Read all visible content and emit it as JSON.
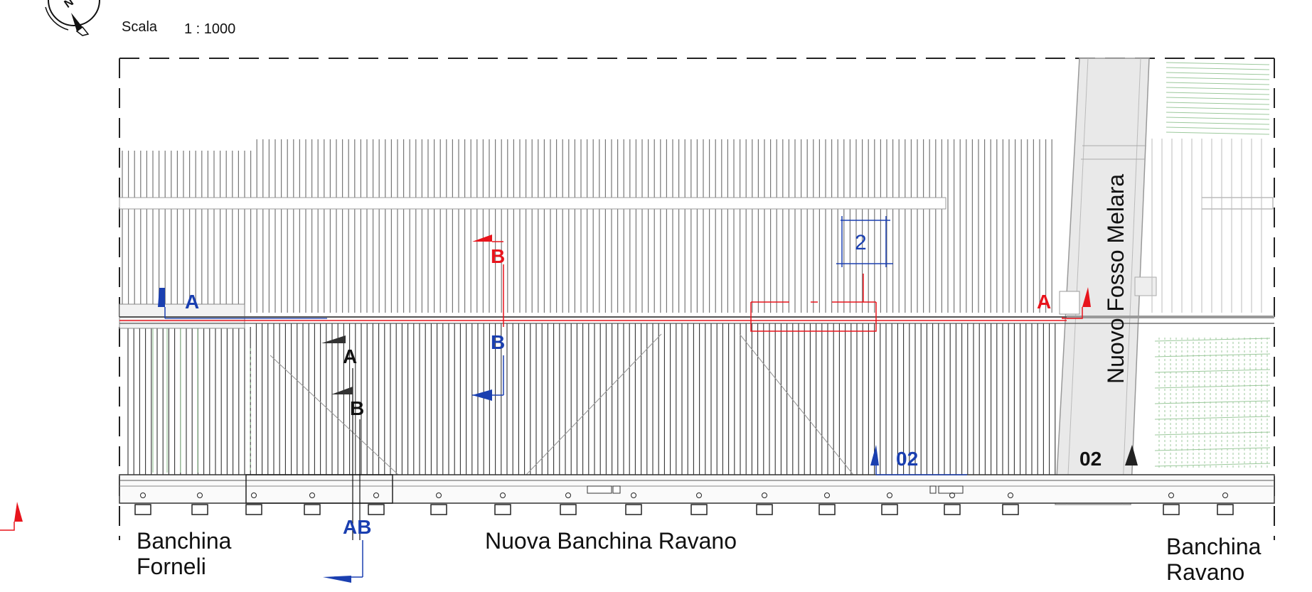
{
  "scale": {
    "label": "Scala",
    "value": "1 : 1000"
  },
  "north_arrow": {
    "icon": "north-arrow-icon",
    "letter": "N"
  },
  "places": {
    "left_line1": "Banchina",
    "left_line2": "Forneli",
    "center": "Nuova Banchina Ravano",
    "right_line1": "Banchina",
    "right_line2": "Ravano",
    "canal": "Nuovo Fosso Melara"
  },
  "detail_marker": "2",
  "section_markers": {
    "blue_A": "A",
    "red_B_top": "B",
    "red_A_right": "A",
    "blue_B_mid": "B",
    "black_A": "A",
    "black_B": "B",
    "blue_02": "02",
    "black_02": "02",
    "blue_AB_bottom": "AB"
  },
  "colors": {
    "red": "#e8141c",
    "blue": "#1a3fb0",
    "black": "#111111",
    "hatch": "#555555",
    "green": "#9cc99c",
    "canal": "#e9e9e9"
  }
}
